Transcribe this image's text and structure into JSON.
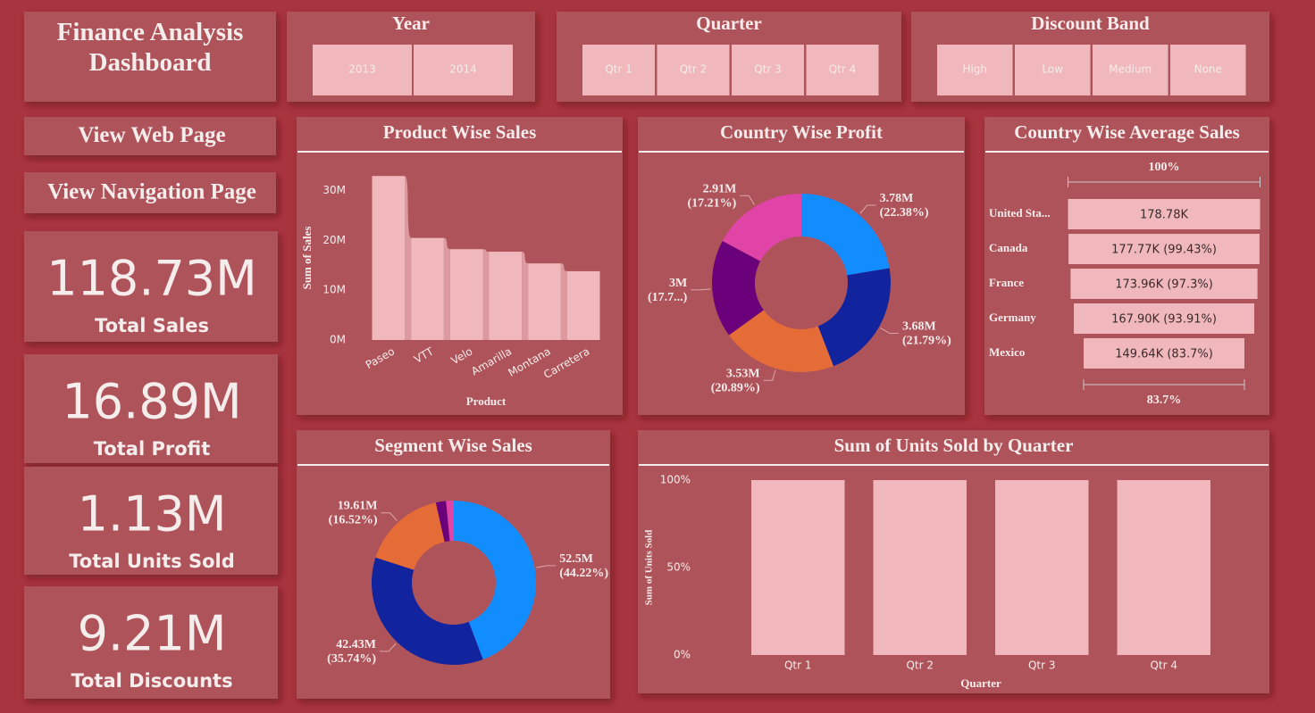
{
  "header": {
    "title": "Finance Analysis Dashboard"
  },
  "slicers": [
    {
      "title": "Year",
      "options": [
        "2013",
        "2014"
      ]
    },
    {
      "title": "Quarter",
      "options": [
        "Qtr 1",
        "Qtr 2",
        "Qtr 3",
        "Qtr 4"
      ]
    },
    {
      "title": "Discount Band",
      "options": [
        "High",
        "Low",
        "Medium",
        "None"
      ]
    }
  ],
  "buttons": [
    "View Web Page",
    "View Navigation Page"
  ],
  "kpis": [
    {
      "value": "118.73M",
      "label": "Total Sales"
    },
    {
      "value": "16.89M",
      "label": "Total Profit"
    },
    {
      "value": "1.13M",
      "label": "Total Units Sold"
    },
    {
      "value": "9.21M",
      "label": "Total Discounts"
    }
  ],
  "chart_data": [
    {
      "type": "bar",
      "title": "Product Wise Sales",
      "categories": [
        "Paseo",
        "VTT",
        "Velo",
        "Amarilla",
        "Montana",
        "Carretera"
      ],
      "values": [
        32960000,
        20510000,
        18250000,
        17750000,
        15390000,
        13820000
      ],
      "color": "#f0b8bc",
      "xlabel": "Product",
      "ylabel": "Sum of Sales",
      "ylim": [
        0,
        33000000
      ],
      "yticks": [
        {
          "value": 0,
          "label": "0M"
        },
        {
          "value": 10000000,
          "label": "10M"
        },
        {
          "value": 20000000,
          "label": "20M"
        },
        {
          "value": 30000000,
          "label": "30M"
        }
      ]
    },
    {
      "type": "donut",
      "title": "Country Wise Profit",
      "values": [
        3780000,
        3680000,
        3530000,
        3000000,
        2910000
      ],
      "value_labels": [
        "3.78M (22.38%)",
        "3.68M (21.79%)",
        "3.53M (20.89%)",
        "3M (17.7...)",
        "2.91M (17.21%)"
      ],
      "colors": [
        "#118dff",
        "#12239e",
        "#e66c37",
        "#6b007b",
        "#e044a7"
      ]
    },
    {
      "type": "funnel",
      "title": "Country Wise Average Sales",
      "categories": [
        "United Sta...",
        "Canada",
        "France",
        "Germany",
        "Mexico"
      ],
      "values": [
        178780,
        177770,
        173960,
        167900,
        149640
      ],
      "value_labels": [
        "178.78K",
        "177.77K (99.43%)",
        "173.96K (97.3%)",
        "167.90K (93.91%)",
        "149.64K (83.7%)"
      ],
      "color": "#f0b8bc",
      "top_label": "100%",
      "bottom_label": "83.7%"
    },
    {
      "type": "donut",
      "title": "Segment Wise Sales",
      "values": [
        52500000,
        42430000,
        19610000,
        2380000,
        1800000
      ],
      "value_labels": [
        "52.5M (44.22%)",
        "42.43M (35.74%)",
        "19.61M (16.52%)",
        null,
        null
      ],
      "colors": [
        "#118dff",
        "#12239e",
        "#e66c37",
        "#6b007b",
        "#e044a7"
      ]
    },
    {
      "type": "bar",
      "title": "Sum of Units Sold by Quarter",
      "categories": [
        "Qtr 1",
        "Qtr 2",
        "Qtr 3",
        "Qtr 4"
      ],
      "values": [
        100,
        100,
        100,
        100
      ],
      "color": "#f0b8bc",
      "xlabel": "Quarter",
      "ylabel": "Sum of Units Sold",
      "ylim": [
        0,
        100
      ],
      "yticks": [
        {
          "value": 0,
          "label": "0%"
        },
        {
          "value": 50,
          "label": "50%"
        },
        {
          "value": 100,
          "label": "100%"
        }
      ]
    }
  ]
}
